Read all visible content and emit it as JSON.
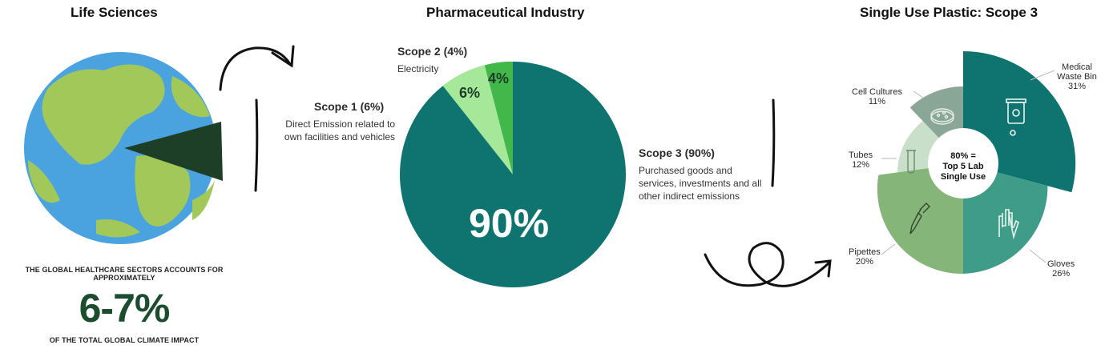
{
  "panels": {
    "life_sciences": {
      "title": "Life Sciences",
      "caption_top": "THE GLOBAL HEALTHCARE SECTORS ACCOUNTS FOR APPROXIMATELY",
      "highlight": "6-7%",
      "caption_bottom": "OF THE TOTAL GLOBAL CLIMATE IMPACT"
    },
    "pharma": {
      "title": "Pharmaceutical Industry",
      "scope1": {
        "heading": "Scope 1 (6%)",
        "desc": "Direct Emission related to own facilities and vehicles"
      },
      "scope2": {
        "heading": "Scope 2 (4%)",
        "desc": "Electricity"
      },
      "scope3": {
        "heading": "Scope 3 (90%)",
        "desc": "Purchased goods and services, investments and all other indirect emissions"
      },
      "slice_labels": {
        "s1": "6%",
        "s2": "4%",
        "s3": "90%"
      }
    },
    "plastic": {
      "title": "Single Use Plastic: Scope 3",
      "center_text": [
        "80% =",
        "Top 5 Lab",
        "Single Use"
      ],
      "segments": [
        {
          "name": "Medical Waste Bin",
          "label_lines": [
            "Medical",
            "Waste Bin"
          ],
          "value": "31%",
          "icon": "biohazard-bin-icon"
        },
        {
          "name": "Gloves",
          "label_lines": [
            "Gloves"
          ],
          "value": "26%",
          "icon": "glove-icon"
        },
        {
          "name": "Pipettes",
          "label_lines": [
            "Pipettes"
          ],
          "value": "20%",
          "icon": "pipette-icon"
        },
        {
          "name": "Tubes",
          "label_lines": [
            "Tubes"
          ],
          "value": "12%",
          "icon": "test-tube-icon"
        },
        {
          "name": "Cell Cultures",
          "label_lines": [
            "Cell Cultures"
          ],
          "value": "11%",
          "icon": "petri-dish-icon"
        }
      ]
    }
  },
  "colors": {
    "ocean": "#4aa3df",
    "land": "#a3c85a",
    "wedge": "#1d3f27",
    "teal": "#0f7470",
    "light_green": "#a6e89a",
    "mid_green": "#42b84a",
    "plastic": [
      "#0f7470",
      "#3f9c88",
      "#86b57a",
      "#c9dfc9",
      "#8aa696"
    ]
  }
}
